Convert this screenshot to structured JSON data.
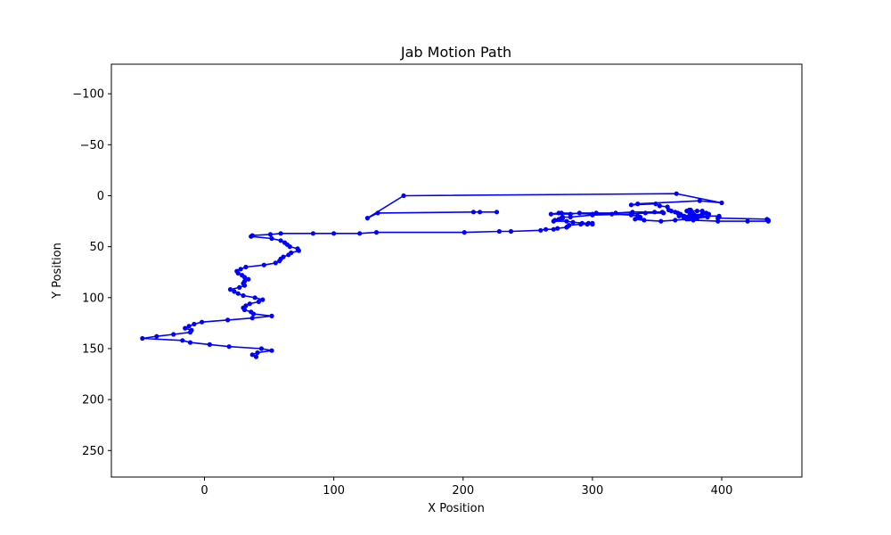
{
  "chart_data": {
    "type": "line",
    "title": "Jab Motion Path",
    "xlabel": "X Position",
    "ylabel": "Y Position",
    "xlim": [
      -72,
      462
    ],
    "ylim": [
      -129,
      276
    ],
    "y_inverted": true,
    "grid": false,
    "x_ticks": [
      0,
      100,
      200,
      300,
      400
    ],
    "y_ticks": [
      -100,
      -50,
      0,
      50,
      100,
      150,
      200,
      250
    ],
    "colors": {
      "line": "#0000ff",
      "marker": "#0000ff"
    },
    "series": [
      {
        "marker": "dot",
        "x": [
          226,
          213,
          208,
          134,
          126,
          154,
          365,
          400,
          383,
          335,
          330,
          349,
          352,
          358,
          359,
          361,
          364,
          366,
          368,
          368,
          370,
          371,
          373,
          375,
          376,
          378,
          376,
          377,
          376,
          376,
          375,
          376,
          376,
          376,
          375,
          375,
          376,
          374,
          373,
          381,
          385,
          388,
          390,
          385,
          379,
          380,
          398,
          398,
          397,
          435,
          436,
          436,
          420,
          397,
          378,
          375,
          377,
          380,
          378,
          371,
          367,
          370,
          375,
          383,
          389,
          381,
          373,
          364,
          353,
          340,
          333,
          337,
          337,
          335,
          330,
          315,
          300,
          276,
          274,
          268,
          283,
          290,
          303,
          318,
          331,
          348,
          354,
          355,
          341,
          330,
          300,
          283,
          277,
          276,
          277,
          274,
          271,
          270,
          280,
          285,
          292,
          297,
          300,
          300,
          296,
          291,
          282,
          281,
          280,
          273,
          270,
          264,
          260,
          237,
          228,
          201,
          133,
          120,
          100,
          84,
          59,
          51,
          37,
          36,
          52,
          59,
          62,
          64,
          66,
          72,
          73,
          67,
          65,
          61,
          59,
          58,
          55,
          46,
          32,
          28,
          25,
          26,
          29,
          31,
          34,
          31,
          30,
          31,
          27,
          20,
          23,
          26,
          30,
          39,
          45,
          42,
          35,
          32,
          30,
          31,
          36,
          38,
          52,
          37,
          18,
          -2,
          -8,
          -12,
          -15,
          -10,
          -11,
          -24,
          -37,
          -48,
          -17,
          -11,
          4,
          19,
          44,
          52,
          41,
          37,
          40
        ],
        "y": [
          16,
          16,
          16,
          17,
          22,
          0,
          -2,
          7,
          5,
          8,
          9,
          8,
          10,
          11,
          14,
          15,
          16,
          17,
          18,
          19,
          20,
          22,
          21,
          20,
          19,
          18,
          18,
          17,
          17,
          17,
          16,
          15,
          15,
          15,
          14,
          14,
          14,
          15,
          15,
          15,
          15,
          17,
          18,
          18,
          19,
          20,
          20,
          21,
          22,
          23,
          24,
          25,
          25,
          25,
          24,
          23,
          22,
          21,
          21,
          20,
          20,
          20,
          20,
          20,
          21,
          22,
          23,
          24,
          25,
          24,
          23,
          22,
          21,
          20,
          19,
          18,
          18,
          17,
          17,
          18,
          18,
          17,
          17,
          17,
          16,
          16,
          16,
          17,
          17,
          18,
          19,
          21,
          21,
          22,
          22,
          23,
          24,
          25,
          25,
          26,
          27,
          27,
          27,
          28,
          28,
          28,
          29,
          30,
          31,
          32,
          33,
          33,
          34,
          35,
          35,
          36,
          36,
          37,
          37,
          37,
          37,
          38,
          39,
          40,
          42,
          44,
          46,
          48,
          50,
          52,
          54,
          56,
          58,
          60,
          62,
          64,
          66,
          68,
          70,
          72,
          74,
          76,
          78,
          80,
          82,
          84,
          86,
          88,
          90,
          92,
          94,
          96,
          98,
          100,
          102,
          104,
          106,
          108,
          110,
          112,
          114,
          116,
          118,
          120,
          122,
          124,
          126,
          128,
          130,
          132,
          134,
          136,
          138,
          140,
          142,
          144,
          146,
          148,
          150,
          152,
          154,
          156,
          158
        ]
      }
    ]
  }
}
